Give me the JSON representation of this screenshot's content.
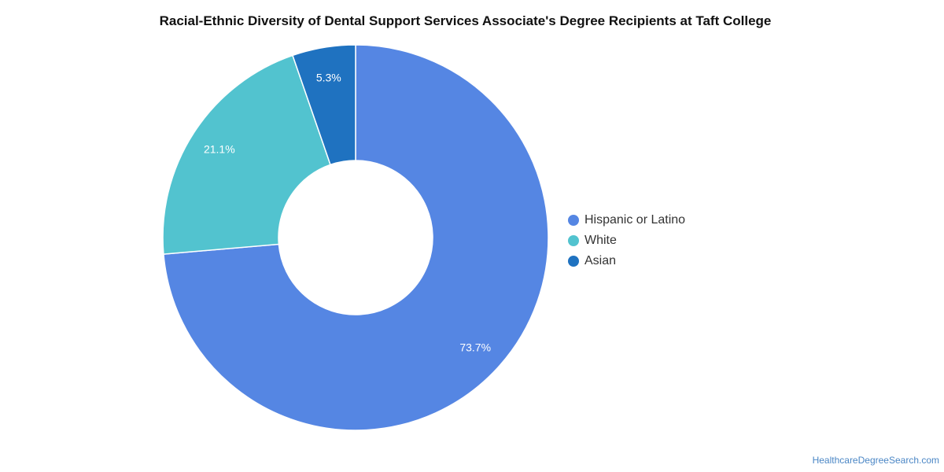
{
  "chart_data": {
    "type": "pie",
    "title": "Racial-Ethnic Diversity of Dental Support Services Associate's Degree Recipients at Taft College",
    "categories": [
      "Hispanic or Latino",
      "White",
      "Asian"
    ],
    "values": [
      73.7,
      21.1,
      5.3
    ],
    "value_labels": [
      "73.7%",
      "21.1%",
      "5.3%"
    ],
    "colors": [
      "#5586e3",
      "#52c3cf",
      "#1f72c0"
    ],
    "legend_position": "right",
    "donut": true
  },
  "source": "HealthcareDegreeSearch.com"
}
